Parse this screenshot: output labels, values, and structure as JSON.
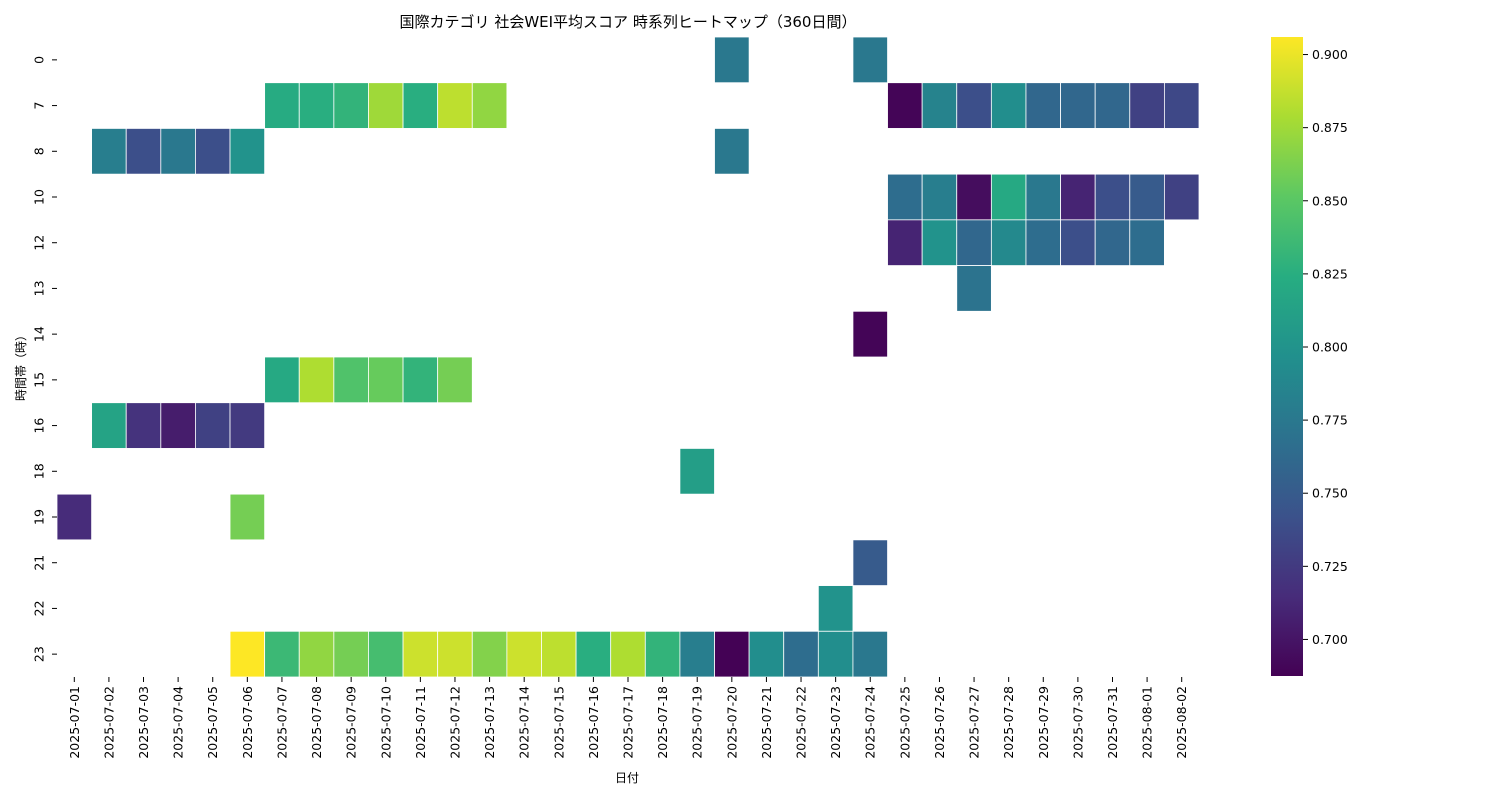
{
  "chart_data": {
    "type": "heatmap",
    "title": "国際カテゴリ 社会WEI平均スコア 時系列ヒートマップ（360日間）",
    "xlabel": "日付",
    "ylabel": "時間帯（時）",
    "x": [
      "2025-07-01",
      "2025-07-02",
      "2025-07-03",
      "2025-07-04",
      "2025-07-05",
      "2025-07-06",
      "2025-07-07",
      "2025-07-08",
      "2025-07-09",
      "2025-07-10",
      "2025-07-11",
      "2025-07-12",
      "2025-07-13",
      "2025-07-14",
      "2025-07-15",
      "2025-07-16",
      "2025-07-17",
      "2025-07-18",
      "2025-07-19",
      "2025-07-20",
      "2025-07-21",
      "2025-07-22",
      "2025-07-23",
      "2025-07-24",
      "2025-07-25",
      "2025-07-26",
      "2025-07-27",
      "2025-07-28",
      "2025-07-29",
      "2025-07-30",
      "2025-07-31",
      "2025-08-01",
      "2025-08-02"
    ],
    "y": [
      "0",
      "7",
      "8",
      "10",
      "12",
      "13",
      "14",
      "15",
      "16",
      "18",
      "19",
      "21",
      "22",
      "23"
    ],
    "colormap": "viridis",
    "vmin": 0.6875,
    "vmax": 0.906,
    "colorbar_ticks": [
      "0.700",
      "0.725",
      "0.750",
      "0.775",
      "0.800",
      "0.825",
      "0.850",
      "0.875",
      "0.900"
    ],
    "cells": [
      {
        "x": "2025-07-20",
        "y": "0",
        "value": 0.775
      },
      {
        "x": "2025-07-24",
        "y": "0",
        "value": 0.775
      },
      {
        "x": "2025-07-07",
        "y": "7",
        "value": 0.822
      },
      {
        "x": "2025-07-08",
        "y": "7",
        "value": 0.825
      },
      {
        "x": "2025-07-09",
        "y": "7",
        "value": 0.83
      },
      {
        "x": "2025-07-10",
        "y": "7",
        "value": 0.875
      },
      {
        "x": "2025-07-11",
        "y": "7",
        "value": 0.825
      },
      {
        "x": "2025-07-12",
        "y": "7",
        "value": 0.885
      },
      {
        "x": "2025-07-13",
        "y": "7",
        "value": 0.87
      },
      {
        "x": "2025-07-25",
        "y": "7",
        "value": 0.69
      },
      {
        "x": "2025-07-26",
        "y": "7",
        "value": 0.785
      },
      {
        "x": "2025-07-27",
        "y": "7",
        "value": 0.74
      },
      {
        "x": "2025-07-28",
        "y": "7",
        "value": 0.795
      },
      {
        "x": "2025-07-29",
        "y": "7",
        "value": 0.76
      },
      {
        "x": "2025-07-30",
        "y": "7",
        "value": 0.76
      },
      {
        "x": "2025-07-31",
        "y": "7",
        "value": 0.76
      },
      {
        "x": "2025-08-01",
        "y": "7",
        "value": 0.73
      },
      {
        "x": "2025-08-02",
        "y": "7",
        "value": 0.735
      },
      {
        "x": "2025-07-02",
        "y": "8",
        "value": 0.78
      },
      {
        "x": "2025-07-03",
        "y": "8",
        "value": 0.74
      },
      {
        "x": "2025-07-04",
        "y": "8",
        "value": 0.775
      },
      {
        "x": "2025-07-05",
        "y": "8",
        "value": 0.74
      },
      {
        "x": "2025-07-06",
        "y": "8",
        "value": 0.8
      },
      {
        "x": "2025-07-20",
        "y": "8",
        "value": 0.775
      },
      {
        "x": "2025-07-25",
        "y": "10",
        "value": 0.765
      },
      {
        "x": "2025-07-26",
        "y": "10",
        "value": 0.78
      },
      {
        "x": "2025-07-27",
        "y": "10",
        "value": 0.695
      },
      {
        "x": "2025-07-28",
        "y": "10",
        "value": 0.82
      },
      {
        "x": "2025-07-29",
        "y": "10",
        "value": 0.775
      },
      {
        "x": "2025-07-30",
        "y": "10",
        "value": 0.71
      },
      {
        "x": "2025-07-31",
        "y": "10",
        "value": 0.74
      },
      {
        "x": "2025-08-01",
        "y": "10",
        "value": 0.75
      },
      {
        "x": "2025-08-02",
        "y": "10",
        "value": 0.73
      },
      {
        "x": "2025-07-25",
        "y": "12",
        "value": 0.71
      },
      {
        "x": "2025-07-26",
        "y": "12",
        "value": 0.8
      },
      {
        "x": "2025-07-27",
        "y": "12",
        "value": 0.76
      },
      {
        "x": "2025-07-28",
        "y": "12",
        "value": 0.79
      },
      {
        "x": "2025-07-29",
        "y": "12",
        "value": 0.765
      },
      {
        "x": "2025-07-30",
        "y": "12",
        "value": 0.74
      },
      {
        "x": "2025-07-31",
        "y": "12",
        "value": 0.76
      },
      {
        "x": "2025-08-01",
        "y": "12",
        "value": 0.765
      },
      {
        "x": "2025-07-27",
        "y": "13",
        "value": 0.77
      },
      {
        "x": "2025-07-24",
        "y": "14",
        "value": 0.69
      },
      {
        "x": "2025-07-07",
        "y": "15",
        "value": 0.82
      },
      {
        "x": "2025-07-08",
        "y": "15",
        "value": 0.88
      },
      {
        "x": "2025-07-09",
        "y": "15",
        "value": 0.845
      },
      {
        "x": "2025-07-10",
        "y": "15",
        "value": 0.855
      },
      {
        "x": "2025-07-11",
        "y": "15",
        "value": 0.83
      },
      {
        "x": "2025-07-12",
        "y": "15",
        "value": 0.86
      },
      {
        "x": "2025-07-02",
        "y": "16",
        "value": 0.815
      },
      {
        "x": "2025-07-03",
        "y": "16",
        "value": 0.72
      },
      {
        "x": "2025-07-04",
        "y": "16",
        "value": 0.705
      },
      {
        "x": "2025-07-05",
        "y": "16",
        "value": 0.73
      },
      {
        "x": "2025-07-06",
        "y": "16",
        "value": 0.725
      },
      {
        "x": "2025-07-19",
        "y": "18",
        "value": 0.81
      },
      {
        "x": "2025-07-01",
        "y": "19",
        "value": 0.715
      },
      {
        "x": "2025-07-06",
        "y": "19",
        "value": 0.86
      },
      {
        "x": "2025-07-24",
        "y": "21",
        "value": 0.75
      },
      {
        "x": "2025-07-23",
        "y": "22",
        "value": 0.8
      },
      {
        "x": "2025-07-06",
        "y": "23",
        "value": 0.906
      },
      {
        "x": "2025-07-07",
        "y": "23",
        "value": 0.835
      },
      {
        "x": "2025-07-08",
        "y": "23",
        "value": 0.87
      },
      {
        "x": "2025-07-09",
        "y": "23",
        "value": 0.86
      },
      {
        "x": "2025-07-10",
        "y": "23",
        "value": 0.84
      },
      {
        "x": "2025-07-11",
        "y": "23",
        "value": 0.89
      },
      {
        "x": "2025-07-12",
        "y": "23",
        "value": 0.89
      },
      {
        "x": "2025-07-13",
        "y": "23",
        "value": 0.865
      },
      {
        "x": "2025-07-14",
        "y": "23",
        "value": 0.89
      },
      {
        "x": "2025-07-15",
        "y": "23",
        "value": 0.885
      },
      {
        "x": "2025-07-16",
        "y": "23",
        "value": 0.825
      },
      {
        "x": "2025-07-17",
        "y": "23",
        "value": 0.88
      },
      {
        "x": "2025-07-18",
        "y": "23",
        "value": 0.83
      },
      {
        "x": "2025-07-19",
        "y": "23",
        "value": 0.78
      },
      {
        "x": "2025-07-20",
        "y": "23",
        "value": 0.688
      },
      {
        "x": "2025-07-21",
        "y": "23",
        "value": 0.795
      },
      {
        "x": "2025-07-22",
        "y": "23",
        "value": 0.765
      },
      {
        "x": "2025-07-23",
        "y": "23",
        "value": 0.795
      },
      {
        "x": "2025-07-24",
        "y": "23",
        "value": 0.775
      }
    ]
  }
}
